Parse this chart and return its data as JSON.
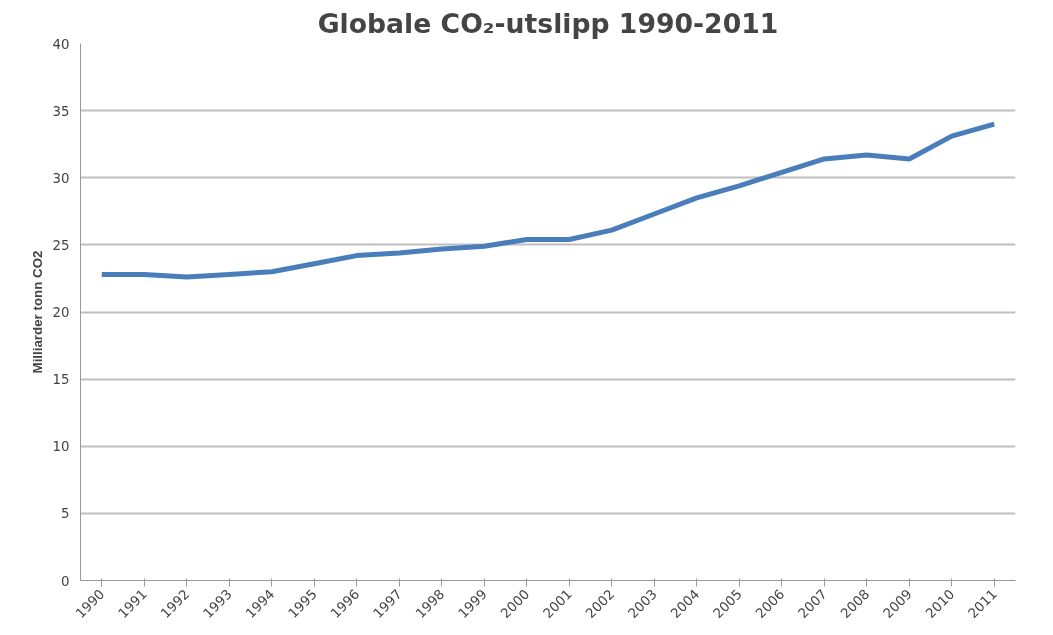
{
  "chart_data": {
    "type": "line",
    "title": "Globale CO₂-utslipp 1990-2011",
    "ylabel": "Milliarder tonn CO2",
    "categories": [
      "1990",
      "1991",
      "1992",
      "1993",
      "1994",
      "1995",
      "1996",
      "1997",
      "1998",
      "1999",
      "2000",
      "2001",
      "2002",
      "2003",
      "2004",
      "2005",
      "2006",
      "2007",
      "2008",
      "2009",
      "2010",
      "2011"
    ],
    "series": [
      {
        "color": "#4a7ebb",
        "values": [
          22.8,
          22.8,
          22.6,
          22.8,
          23.0,
          23.6,
          24.2,
          24.4,
          24.7,
          24.9,
          25.4,
          25.4,
          26.1,
          27.3,
          28.5,
          29.4,
          30.4,
          31.4,
          31.7,
          31.4,
          33.1,
          34.0
        ]
      }
    ],
    "ylim": [
      0,
      40
    ],
    "yticks": [
      0,
      5,
      10,
      15,
      20,
      25,
      30,
      35,
      40
    ],
    "grid": "y",
    "marker": "none",
    "line_style": "solid"
  }
}
